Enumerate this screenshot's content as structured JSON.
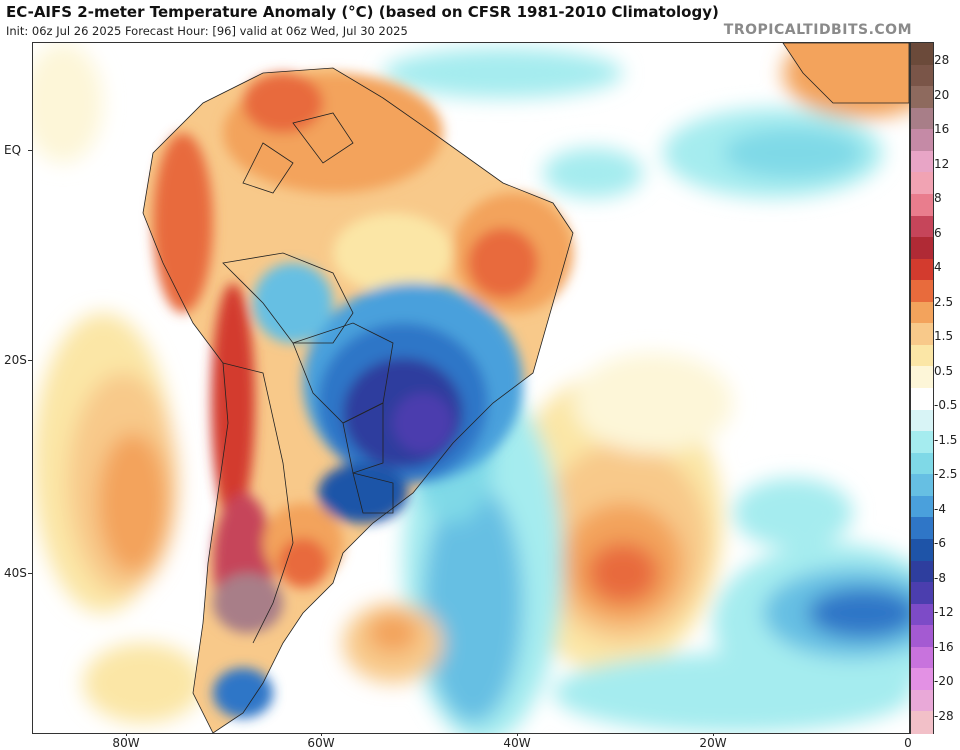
{
  "header": {
    "title": "EC-AIFS 2-meter Temperature Anomaly (°C) (based on CFSR 1981-2010 Climatology)",
    "subtitle": "Init: 06z Jul 26 2025   Forecast Hour: [96]   valid at 06z Wed, Jul 30 2025"
  },
  "watermark": "TROPICALTIDBITS.COM",
  "map": {
    "region": "South America and South Atlantic",
    "lat_labels": [
      "EQ",
      "20S",
      "40S"
    ],
    "lon_labels": [
      "80W",
      "60W",
      "40W",
      "20W",
      "0"
    ]
  },
  "colorbar": {
    "labels": [
      "28",
      "20",
      "16",
      "12",
      "8",
      "6",
      "4",
      "2.5",
      "1.5",
      "0.5",
      "-0.5",
      "-1.5",
      "-2.5",
      "-4",
      "-6",
      "-8",
      "-12",
      "-16",
      "-20",
      "-28"
    ],
    "colors": [
      "#6b4a3a",
      "#7a5548",
      "#8e6a5e",
      "#a87e88",
      "#c58aa6",
      "#e8a5c6",
      "#f1a3b3",
      "#e97d8d",
      "#c6455a",
      "#b02a35",
      "#d33b2e",
      "#e86b3c",
      "#f3a35c",
      "#f8c98a",
      "#fbe6a6",
      "#fdf6d8",
      "#ffffff",
      "#d8f4f6",
      "#a5ecef",
      "#7fd9e7",
      "#66bfe3",
      "#4aa0dc",
      "#2f76c7",
      "#1e54a8",
      "#2e3e9e",
      "#4b3eae",
      "#7d4bc7",
      "#a45ad2",
      "#c873dd",
      "#e391e4",
      "#e9a9d8",
      "#f2c0c8"
    ]
  }
}
